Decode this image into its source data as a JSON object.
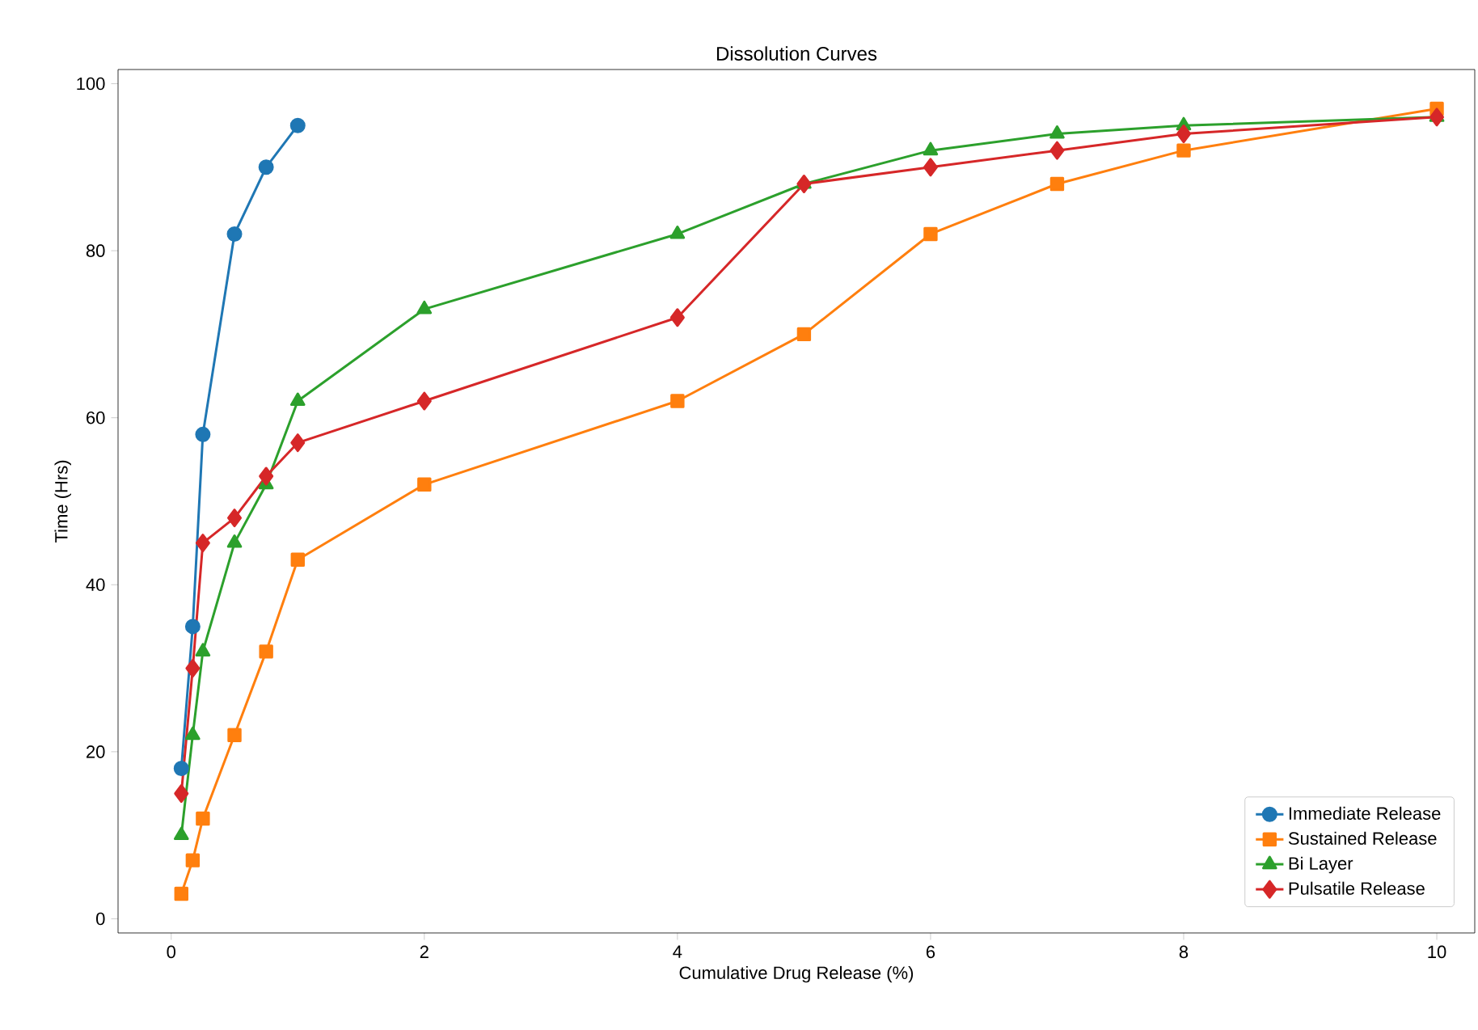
{
  "chart_data": {
    "type": "line",
    "title": "Dissolution Curves",
    "xlabel": "Cumulative Drug Release (%)",
    "ylabel": "Time (Hrs)",
    "xlim": [
      -0.42,
      10.3
    ],
    "ylim": [
      -1.7,
      101.7
    ],
    "xticks": [
      0,
      2,
      4,
      6,
      8,
      10
    ],
    "yticks": [
      0,
      20,
      40,
      60,
      80,
      100
    ],
    "legend": "bottom right",
    "grid": false,
    "series": [
      {
        "name": "Immediate Release",
        "color": "#1f77b4",
        "marker": "circle",
        "x": [
          0.08,
          0.17,
          0.25,
          0.5,
          0.75,
          1
        ],
        "values": [
          18,
          35,
          58,
          82,
          90,
          95
        ]
      },
      {
        "name": "Sustained Release",
        "color": "#ff7f0e",
        "marker": "square",
        "x": [
          0.08,
          0.17,
          0.25,
          0.5,
          0.75,
          1,
          2,
          4,
          5,
          6,
          7,
          8,
          10
        ],
        "values": [
          3,
          7,
          12,
          22,
          32,
          43,
          52,
          62,
          70,
          82,
          88,
          92,
          97
        ]
      },
      {
        "name": "Bi Layer",
        "color": "#2ca02c",
        "marker": "triangle",
        "x": [
          0.08,
          0.17,
          0.25,
          0.5,
          0.75,
          1,
          2,
          4,
          5,
          6,
          7,
          8,
          10
        ],
        "values": [
          10,
          22,
          32,
          45,
          52,
          62,
          73,
          82,
          88,
          92,
          94,
          95,
          96
        ]
      },
      {
        "name": "Pulsatile Release",
        "color": "#d62728",
        "marker": "diamond",
        "x": [
          0.08,
          0.17,
          0.25,
          0.5,
          0.75,
          1,
          2,
          4,
          5,
          6,
          7,
          8,
          10
        ],
        "values": [
          15,
          30,
          45,
          48,
          53,
          57,
          62,
          72,
          88,
          90,
          92,
          94,
          96
        ]
      }
    ]
  }
}
